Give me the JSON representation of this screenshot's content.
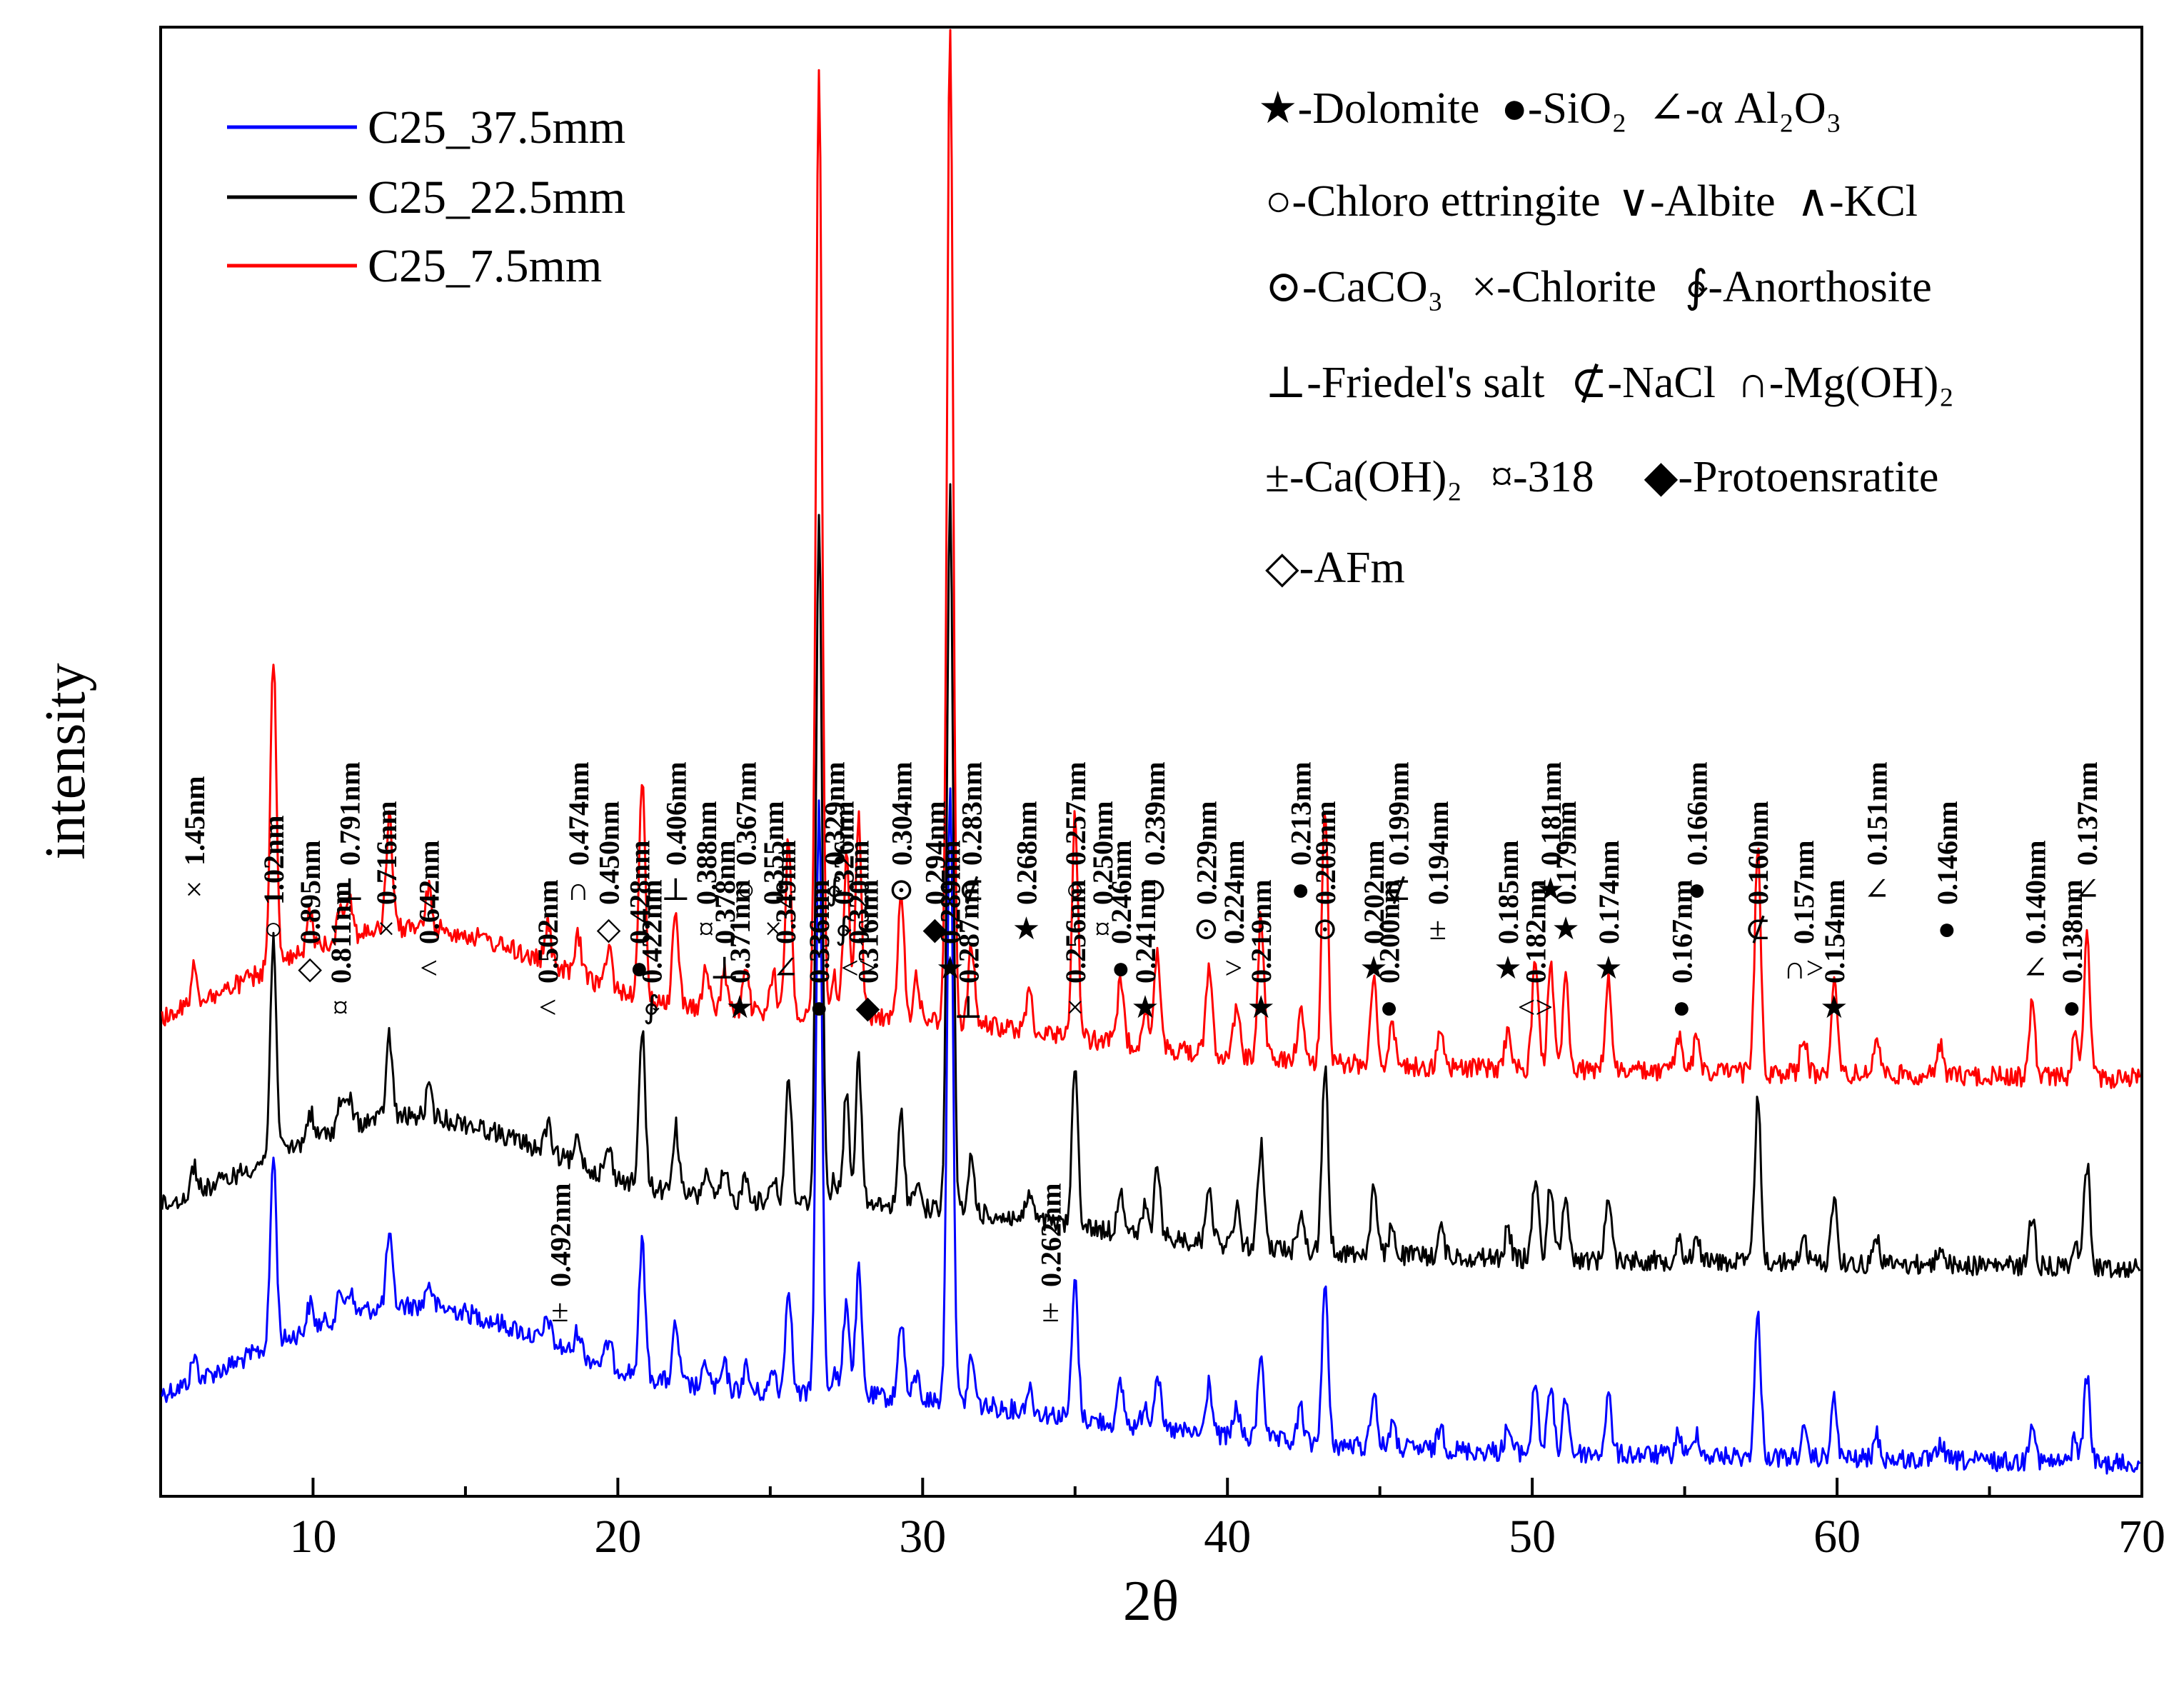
{
  "chart_data": {
    "type": "line",
    "xlabel": "2θ",
    "ylabel": "intensity",
    "xlim": [
      5,
      70
    ],
    "xticks": [
      "10",
      "20",
      "30",
      "40",
      "50",
      "60",
      "70"
    ],
    "grid": false,
    "legend_position": "top-left",
    "series": [
      {
        "name": "C25_37.5mm",
        "color": "#0000ff",
        "offset": 0.0
      },
      {
        "name": "C25_22.5mm",
        "color": "#000000",
        "offset": 1.0
      },
      {
        "name": "C25_7.5mm",
        "color": "#ff0000",
        "offset": 2.0
      }
    ],
    "peaks_2theta": [
      6.1,
      8.7,
      9.9,
      10.9,
      11.2,
      12.5,
      13.8,
      17.7,
      18.7,
      19.7,
      20.8,
      21.9,
      22.9,
      23.5,
      24.2,
      25.1,
      25.6,
      26.6,
      27.1,
      27.5,
      27.9,
      29.3,
      29.8,
      30.9,
      31.6,
      33.5,
      35.0,
      36.5,
      37.3,
      37.7,
      39.4,
      40.3,
      41.1,
      42.4,
      43.2,
      44.8,
      45.4,
      47.0,
      49.2,
      50.1,
      50.6,
      51.1,
      52.5,
      54.8,
      55.4,
      57.4,
      58.9,
      59.9,
      61.3,
      63.4,
      66.4,
      67.8,
      68.2
    ],
    "annotations": [
      {
        "x": 6.1,
        "sym": "×",
        "label": "1.45nm"
      },
      {
        "x": 8.7,
        "sym": "○",
        "label": "1.02nm"
      },
      {
        "x": 9.9,
        "sym": "◇",
        "label": "0.895nm"
      },
      {
        "x": 10.9,
        "sym": "¤",
        "label": "0.811nm"
      },
      {
        "x": 11.2,
        "sym": "⊥",
        "label": "0.791nm"
      },
      {
        "x": 12.4,
        "sym": "×",
        "label": "0.716nm"
      },
      {
        "x": 13.8,
        "sym": "<",
        "label": "0.642nm"
      },
      {
        "x": 17.7,
        "sym": "<",
        "label": "0.502nm"
      },
      {
        "x": 18.7,
        "sym": "∩",
        "label": "0.474nm"
      },
      {
        "x": 19.7,
        "sym": "◇",
        "label": "0.450nm"
      },
      {
        "x": 20.7,
        "sym": "●",
        "label": "0.428nm"
      },
      {
        "x": 21.1,
        "sym": "∲",
        "label": "0.422nm"
      },
      {
        "x": 21.9,
        "sym": "⊥",
        "label": "0.406nm"
      },
      {
        "x": 22.9,
        "sym": "¤",
        "label": "0.388nm"
      },
      {
        "x": 23.5,
        "sym": "⊥",
        "label": "0.378nm"
      },
      {
        "x": 24.0,
        "sym": "★",
        "label": "0.371nm"
      },
      {
        "x": 24.2,
        "sym": "○",
        "label": "0.367nm"
      },
      {
        "x": 25.1,
        "sym": "×",
        "label": "0.355nm"
      },
      {
        "x": 25.5,
        "sym": "∠",
        "label": "0.349nm"
      },
      {
        "x": 26.6,
        "sym": "●",
        "label": "0.336nm"
      },
      {
        "x": 27.1,
        "sym": "∲",
        "label": "0.329nm"
      },
      {
        "x": 27.4,
        "sym": "∲",
        "label": "0.326nm"
      },
      {
        "x": 27.9,
        "sym": "<>",
        "label": "0.320nm"
      },
      {
        "x": 28.2,
        "sym": "◆",
        "label": "0.316nm"
      },
      {
        "x": 29.3,
        "sym": "⊙",
        "label": "0.304nm"
      },
      {
        "x": 30.4,
        "sym": "◆",
        "label": "0.294nm"
      },
      {
        "x": 30.9,
        "sym": "★",
        "label": "0.289nm"
      },
      {
        "x": 31.5,
        "sym": "⊥",
        "label": "0.287nm"
      },
      {
        "x": 31.6,
        "sym": "⊄",
        "label": "0.283nm"
      },
      {
        "x": 33.4,
        "sym": "★",
        "label": "0.268nm"
      },
      {
        "x": 34.2,
        "sym": "±",
        "label": "0.262nm"
      },
      {
        "x": 35.0,
        "sym": "×",
        "label": "0.256nm"
      },
      {
        "x": 35.0,
        "sym": "○",
        "label": "0.257nm"
      },
      {
        "x": 35.9,
        "sym": "¤",
        "label": "0.250nm"
      },
      {
        "x": 36.5,
        "sym": "●",
        "label": "0.246nm"
      },
      {
        "x": 37.3,
        "sym": "★",
        "label": "0.241nm"
      },
      {
        "x": 37.6,
        "sym": "⊃",
        "label": "0.239nm"
      },
      {
        "x": 39.3,
        "sym": "⊙",
        "label": "0.229nm"
      },
      {
        "x": 40.2,
        "sym": ">",
        "label": "0.224nm"
      },
      {
        "x": 41.1,
        "sym": "★",
        "label": "0.219nm"
      },
      {
        "x": 42.4,
        "sym": "●",
        "label": "0.213nm"
      },
      {
        "x": 43.2,
        "sym": "⊙",
        "label": "0.209nm"
      },
      {
        "x": 44.8,
        "sym": "★",
        "label": "0.202nm"
      },
      {
        "x": 45.3,
        "sym": "●",
        "label": "0.200nm"
      },
      {
        "x": 45.6,
        "sym": "⊄",
        "label": "0.199nm"
      },
      {
        "x": 46.9,
        "sym": "±",
        "label": "0.194nm"
      },
      {
        "x": 49.2,
        "sym": "★",
        "label": "0.185nm"
      },
      {
        "x": 50.1,
        "sym": "<>",
        "label": "0.182nm"
      },
      {
        "x": 50.6,
        "sym": "★",
        "label": "0.181nm"
      },
      {
        "x": 51.1,
        "sym": "★",
        "label": "0.179nm"
      },
      {
        "x": 52.5,
        "sym": "★",
        "label": "0.174nm"
      },
      {
        "x": 54.9,
        "sym": "●",
        "label": "0.167nm"
      },
      {
        "x": 55.4,
        "sym": "●",
        "label": "0.166nm"
      },
      {
        "x": 57.4,
        "sym": "⊄",
        "label": "0.160nm"
      },
      {
        "x": 58.9,
        "sym": "∩>",
        "label": "0.157nm"
      },
      {
        "x": 59.9,
        "sym": "★",
        "label": "0.154nm"
      },
      {
        "x": 61.3,
        "sym": "∠",
        "label": "0.151nm"
      },
      {
        "x": 63.6,
        "sym": "●",
        "label": "0.146nm"
      },
      {
        "x": 66.5,
        "sym": "∠",
        "label": "0.140nm"
      },
      {
        "x": 67.7,
        "sym": "●",
        "label": "0.138nm"
      },
      {
        "x": 68.2,
        "sym": "∠",
        "label": "0.137nm"
      },
      {
        "x": 18.1,
        "sym": "±",
        "label": "0.492nm"
      }
    ]
  },
  "phase_legend": [
    [
      "★-Dolomite",
      "●-SiO₂",
      "∠-α Al₂O₃"
    ],
    [
      "○-Chloro ettringite",
      "∨-Albite",
      "∧-KCl"
    ],
    [
      "⊙-CaCO₃",
      "×-Chlorite",
      "∲-Anorthosite"
    ],
    [
      "⊥-Friedel's salt",
      "⊄-NaCl",
      "∩-Mg(OH)₂"
    ],
    [
      "±-Ca(OH)₂",
      "¤-318",
      "◆-Protoensratite"
    ],
    [
      "◇-AFm"
    ]
  ],
  "colors": {
    "blue": "#0000ff",
    "black": "#000000",
    "red": "#ff0000"
  }
}
